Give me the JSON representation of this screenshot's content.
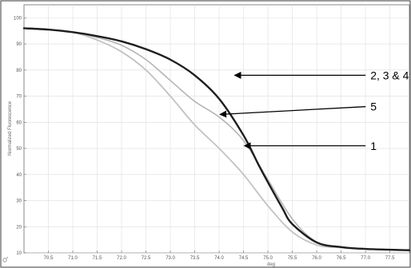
{
  "chart_data": {
    "type": "line",
    "title": "",
    "xlabel": "deg",
    "ylabel": "Normalized Fluorescence",
    "xlim": [
      70.0,
      77.9
    ],
    "ylim": [
      10,
      105
    ],
    "x_ticks": [
      "70.5",
      "71.0",
      "71.5",
      "72.0",
      "72.5",
      "73.0",
      "73.5",
      "74.0",
      "74.5",
      "75.0",
      "75.5",
      "76.0",
      "76.5",
      "77.0",
      "77.5"
    ],
    "y_ticks": [
      "10",
      "20",
      "30",
      "40",
      "50",
      "60",
      "70",
      "80",
      "90",
      "100"
    ],
    "grid": true,
    "legend": "none",
    "colors": {
      "series_2_3_4": "#1e1e1e",
      "series_5": "#b4b4b4",
      "series_1": "#c2c2c2",
      "grid": "#dedede",
      "frame": "#6a6a6a"
    },
    "series": [
      {
        "key": "s234",
        "x": [
          70.0,
          70.5,
          71.0,
          71.5,
          72.0,
          72.5,
          73.0,
          73.5,
          74.0,
          74.5,
          74.8,
          75.0,
          75.3,
          75.5,
          76.0,
          76.5,
          77.0,
          77.5,
          77.9
        ],
        "y": [
          96,
          95.5,
          94.5,
          93,
          91,
          88,
          84,
          78,
          69,
          55,
          44,
          37,
          27,
          21,
          14,
          12.2,
          11.5,
          11.2,
          11
        ]
      },
      {
        "key": "s5",
        "x": [
          70.0,
          70.5,
          71.0,
          71.5,
          72.0,
          72.5,
          73.0,
          73.5,
          74.0,
          74.5,
          75.0,
          75.5,
          76.0,
          76.5,
          77.0,
          77.5,
          77.9
        ],
        "y": [
          96,
          95.5,
          94.5,
          92.5,
          89.5,
          84,
          76,
          68,
          62,
          53,
          38,
          23,
          14,
          12.2,
          11.5,
          11.2,
          11
        ]
      },
      {
        "key": "s1",
        "x": [
          70.0,
          70.5,
          71.0,
          71.5,
          72.0,
          72.5,
          73.0,
          73.5,
          74.0,
          74.5,
          75.0,
          75.5,
          76.0,
          76.5,
          77.0,
          77.5,
          77.9
        ],
        "y": [
          96,
          95.5,
          94.5,
          91.5,
          87,
          80,
          70,
          59,
          50,
          40,
          28,
          18,
          13,
          12,
          11.5,
          11.2,
          11
        ]
      }
    ],
    "annotations": [
      {
        "text": "2, 3 & 4",
        "target": {
          "x": 74.3,
          "y": 78
        },
        "label_at": {
          "x": 77.1,
          "y": 78
        }
      },
      {
        "text": "5",
        "target": {
          "x": 74.0,
          "y": 63
        },
        "label_at": {
          "x": 77.1,
          "y": 66
        }
      },
      {
        "text": "1",
        "target": {
          "x": 74.5,
          "y": 51
        },
        "label_at": {
          "x": 77.1,
          "y": 51
        }
      }
    ]
  }
}
